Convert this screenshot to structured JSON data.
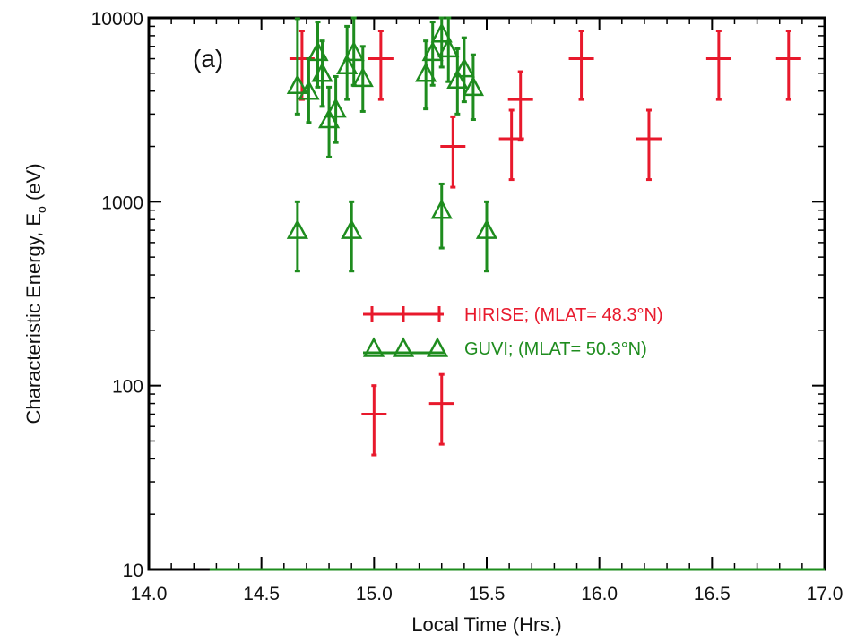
{
  "chart_data": {
    "type": "scatter",
    "panel_label": "(a)",
    "xlabel": "Local Time (Hrs.)",
    "ylabel_main": "Characteristic Energy, E",
    "ylabel_subscript": "o",
    "ylabel_unit": " (eV)",
    "xlim": [
      14.0,
      17.0
    ],
    "ylim": [
      10,
      10000
    ],
    "yscale": "log",
    "grid": false,
    "legend_position": "center",
    "x_ticks": [
      {
        "value": 14.0,
        "label": "14.0"
      },
      {
        "value": 14.5,
        "label": "14.5"
      },
      {
        "value": 15.0,
        "label": "15.0"
      },
      {
        "value": 15.5,
        "label": "15.5"
      },
      {
        "value": 16.0,
        "label": "16.0"
      },
      {
        "value": 16.5,
        "label": "16.5"
      },
      {
        "value": 17.0,
        "label": "17.0"
      }
    ],
    "y_ticks": [
      {
        "value": 10,
        "label": "10"
      },
      {
        "value": 100,
        "label": "100"
      },
      {
        "value": 1000,
        "label": "1000"
      },
      {
        "value": 10000,
        "label": "10000"
      }
    ],
    "series": [
      {
        "name": "HIRISE; (MLAT= 48.3°N)",
        "color": "#e8192c",
        "marker": "plus",
        "points": [
          {
            "x": 14.68,
            "y": 6000,
            "ylo": 3600,
            "yhi": 8500
          },
          {
            "x": 15.03,
            "y": 6000,
            "ylo": 3600,
            "yhi": 8500
          },
          {
            "x": 15.0,
            "y": 70,
            "ylo": 42,
            "yhi": 100
          },
          {
            "x": 15.3,
            "y": 80,
            "ylo": 48,
            "yhi": 115
          },
          {
            "x": 15.35,
            "y": 2000,
            "ylo": 1200,
            "yhi": 2900
          },
          {
            "x": 15.61,
            "y": 2200,
            "ylo": 1320,
            "yhi": 3150
          },
          {
            "x": 15.65,
            "y": 3600,
            "ylo": 2160,
            "yhi": 5100
          },
          {
            "x": 15.92,
            "y": 6000,
            "ylo": 3600,
            "yhi": 8500
          },
          {
            "x": 16.22,
            "y": 2200,
            "ylo": 1320,
            "yhi": 3150
          },
          {
            "x": 16.53,
            "y": 6000,
            "ylo": 3600,
            "yhi": 8500
          },
          {
            "x": 16.84,
            "y": 6000,
            "ylo": 3600,
            "yhi": 8500
          }
        ]
      },
      {
        "name": "GUVI; (MLAT= 50.3°N)",
        "color": "#1e8c1e",
        "marker": "triangle",
        "points": [
          {
            "x": 14.66,
            "y": 4300,
            "ylo": 3000,
            "yhi": 9900
          },
          {
            "x": 14.71,
            "y": 4000,
            "ylo": 2700,
            "yhi": 6000
          },
          {
            "x": 14.75,
            "y": 6500,
            "ylo": 4200,
            "yhi": 9500
          },
          {
            "x": 14.77,
            "y": 5000,
            "ylo": 3300,
            "yhi": 7500
          },
          {
            "x": 14.8,
            "y": 2800,
            "ylo": 1750,
            "yhi": 4200
          },
          {
            "x": 14.83,
            "y": 3200,
            "ylo": 2100,
            "yhi": 4800
          },
          {
            "x": 14.88,
            "y": 5500,
            "ylo": 3600,
            "yhi": 9000
          },
          {
            "x": 14.91,
            "y": 6500,
            "ylo": 4300,
            "yhi": 10000
          },
          {
            "x": 14.95,
            "y": 4700,
            "ylo": 3100,
            "yhi": 7000
          },
          {
            "x": 15.23,
            "y": 5000,
            "ylo": 3200,
            "yhi": 7500
          },
          {
            "x": 15.26,
            "y": 6500,
            "ylo": 4300,
            "yhi": 9500
          },
          {
            "x": 15.3,
            "y": 8200,
            "ylo": 5400,
            "yhi": 10000
          },
          {
            "x": 15.33,
            "y": 6800,
            "ylo": 4500,
            "yhi": 10000
          },
          {
            "x": 15.37,
            "y": 4600,
            "ylo": 3000,
            "yhi": 6800
          },
          {
            "x": 15.4,
            "y": 5300,
            "ylo": 3500,
            "yhi": 7800
          },
          {
            "x": 15.44,
            "y": 4200,
            "ylo": 2800,
            "yhi": 6300
          },
          {
            "x": 14.66,
            "y": 700,
            "ylo": 420,
            "yhi": 1000
          },
          {
            "x": 14.9,
            "y": 700,
            "ylo": 420,
            "yhi": 1000
          },
          {
            "x": 15.3,
            "y": 900,
            "ylo": 560,
            "yhi": 1250
          },
          {
            "x": 15.5,
            "y": 700,
            "ylo": 420,
            "yhi": 1000
          }
        ]
      }
    ]
  }
}
